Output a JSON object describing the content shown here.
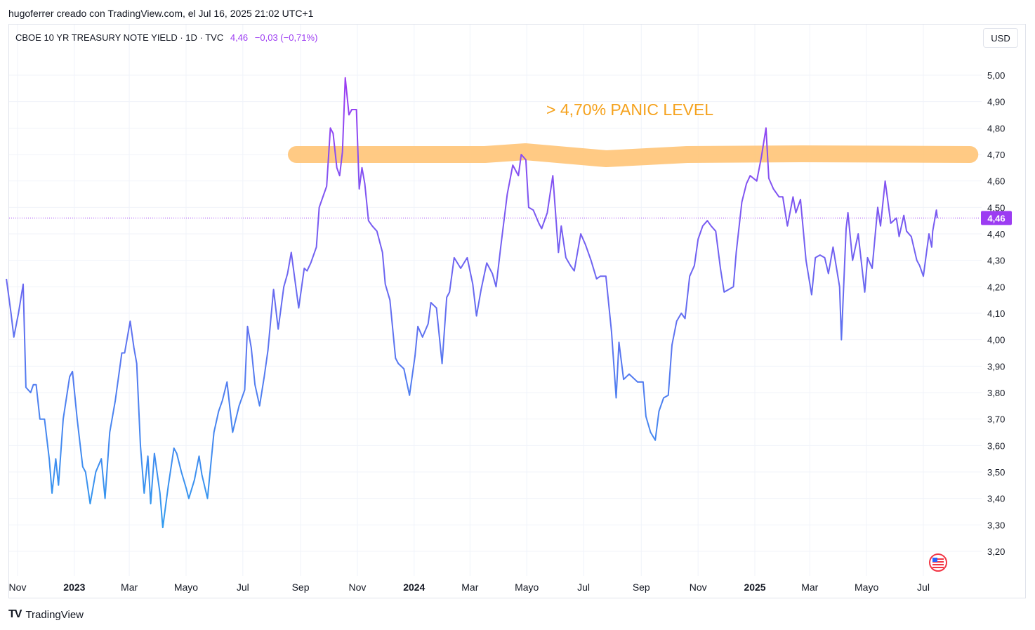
{
  "caption": "hugoferrer creado con TradingView.com, el Jul 16, 2025 21:02 UTC+1",
  "legend": {
    "symbol": "CBOE 10 YR TREASURY NOTE YIELD · 1D · TVC",
    "value": "4,46",
    "change": "−0,03 (−0,71%)"
  },
  "currency_button": "USD",
  "footer_brand": "TradingView",
  "colors": {
    "line_start": "#2f9bef",
    "line_end": "#9c3cf2",
    "zone": "#ffc57a",
    "annotation": "#f5a21d",
    "last_price_badge": "#9c3cf2"
  },
  "chart_data": {
    "type": "line",
    "title": "",
    "xlabel": "",
    "ylabel": "",
    "ylim": [
      3.1,
      5.2
    ],
    "x_ticks": [
      {
        "label": "Nov",
        "date": "2022-11-01",
        "bold": false
      },
      {
        "label": "2023",
        "date": "2023-01-01",
        "bold": true
      },
      {
        "label": "Mar",
        "date": "2023-03-01",
        "bold": false
      },
      {
        "label": "Mayo",
        "date": "2023-05-01",
        "bold": false
      },
      {
        "label": "Jul",
        "date": "2023-07-01",
        "bold": false
      },
      {
        "label": "Sep",
        "date": "2023-09-01",
        "bold": false
      },
      {
        "label": "Nov",
        "date": "2023-11-01",
        "bold": false
      },
      {
        "label": "2024",
        "date": "2024-01-01",
        "bold": true
      },
      {
        "label": "Mar",
        "date": "2024-03-01",
        "bold": false
      },
      {
        "label": "Mayo",
        "date": "2024-05-01",
        "bold": false
      },
      {
        "label": "Jul",
        "date": "2024-07-01",
        "bold": false
      },
      {
        "label": "Sep",
        "date": "2024-09-01",
        "bold": false
      },
      {
        "label": "Nov",
        "date": "2024-11-01",
        "bold": false
      },
      {
        "label": "2025",
        "date": "2025-01-01",
        "bold": true
      },
      {
        "label": "Mar",
        "date": "2025-03-01",
        "bold": false
      },
      {
        "label": "Mayo",
        "date": "2025-05-01",
        "bold": false
      },
      {
        "label": "Jul",
        "date": "2025-07-01",
        "bold": false
      }
    ],
    "y_ticks": [
      "5,00",
      "4,90",
      "4,80",
      "4,70",
      "4,60",
      "4,50",
      "4,40",
      "4,30",
      "4,20",
      "4,10",
      "4,00",
      "3,90",
      "3,80",
      "3,70",
      "3,60",
      "3,50",
      "3,40",
      "3,30",
      "3,20"
    ],
    "series": [
      {
        "points": [
          [
            "2022-10-20",
            4.23
          ],
          [
            "2022-10-25",
            4.1
          ],
          [
            "2022-10-28",
            4.01
          ],
          [
            "2022-11-02",
            4.1
          ],
          [
            "2022-11-07",
            4.21
          ],
          [
            "2022-11-10",
            3.82
          ],
          [
            "2022-11-15",
            3.8
          ],
          [
            "2022-11-18",
            3.83
          ],
          [
            "2022-11-21",
            3.83
          ],
          [
            "2022-11-25",
            3.7
          ],
          [
            "2022-11-30",
            3.7
          ],
          [
            "2022-12-05",
            3.55
          ],
          [
            "2022-12-08",
            3.42
          ],
          [
            "2022-12-12",
            3.55
          ],
          [
            "2022-12-15",
            3.45
          ],
          [
            "2022-12-20",
            3.7
          ],
          [
            "2022-12-27",
            3.86
          ],
          [
            "2022-12-30",
            3.88
          ],
          [
            "2023-01-04",
            3.7
          ],
          [
            "2023-01-10",
            3.52
          ],
          [
            "2023-01-13",
            3.5
          ],
          [
            "2023-01-18",
            3.38
          ],
          [
            "2023-01-24",
            3.5
          ],
          [
            "2023-01-30",
            3.55
          ],
          [
            "2023-02-03",
            3.4
          ],
          [
            "2023-02-08",
            3.65
          ],
          [
            "2023-02-14",
            3.77
          ],
          [
            "2023-02-21",
            3.95
          ],
          [
            "2023-02-24",
            3.95
          ],
          [
            "2023-03-02",
            4.07
          ],
          [
            "2023-03-06",
            3.97
          ],
          [
            "2023-03-09",
            3.91
          ],
          [
            "2023-03-13",
            3.6
          ],
          [
            "2023-03-17",
            3.42
          ],
          [
            "2023-03-21",
            3.56
          ],
          [
            "2023-03-24",
            3.38
          ],
          [
            "2023-03-28",
            3.57
          ],
          [
            "2023-04-03",
            3.42
          ],
          [
            "2023-04-06",
            3.29
          ],
          [
            "2023-04-12",
            3.45
          ],
          [
            "2023-04-18",
            3.59
          ],
          [
            "2023-04-21",
            3.57
          ],
          [
            "2023-04-26",
            3.5
          ],
          [
            "2023-05-01",
            3.44
          ],
          [
            "2023-05-04",
            3.4
          ],
          [
            "2023-05-10",
            3.47
          ],
          [
            "2023-05-15",
            3.56
          ],
          [
            "2023-05-18",
            3.49
          ],
          [
            "2023-05-24",
            3.4
          ],
          [
            "2023-05-31",
            3.65
          ],
          [
            "2023-06-05",
            3.73
          ],
          [
            "2023-06-09",
            3.77
          ],
          [
            "2023-06-14",
            3.84
          ],
          [
            "2023-06-20",
            3.65
          ],
          [
            "2023-06-27",
            3.75
          ],
          [
            "2023-07-03",
            3.81
          ],
          [
            "2023-07-06",
            4.05
          ],
          [
            "2023-07-10",
            3.97
          ],
          [
            "2023-07-14",
            3.83
          ],
          [
            "2023-07-19",
            3.75
          ],
          [
            "2023-07-24",
            3.86
          ],
          [
            "2023-07-28",
            3.96
          ],
          [
            "2023-08-03",
            4.19
          ],
          [
            "2023-08-08",
            4.04
          ],
          [
            "2023-08-14",
            4.2
          ],
          [
            "2023-08-18",
            4.25
          ],
          [
            "2023-08-22",
            4.33
          ],
          [
            "2023-08-25",
            4.25
          ],
          [
            "2023-08-30",
            4.12
          ],
          [
            "2023-09-05",
            4.27
          ],
          [
            "2023-09-08",
            4.26
          ],
          [
            "2023-09-12",
            4.29
          ],
          [
            "2023-09-18",
            4.35
          ],
          [
            "2023-09-21",
            4.5
          ],
          [
            "2023-09-26",
            4.55
          ],
          [
            "2023-09-29",
            4.58
          ],
          [
            "2023-10-03",
            4.8
          ],
          [
            "2023-10-06",
            4.78
          ],
          [
            "2023-10-10",
            4.65
          ],
          [
            "2023-10-13",
            4.62
          ],
          [
            "2023-10-16",
            4.71
          ],
          [
            "2023-10-19",
            4.99
          ],
          [
            "2023-10-23",
            4.85
          ],
          [
            "2023-10-26",
            4.87
          ],
          [
            "2023-10-31",
            4.87
          ],
          [
            "2023-11-03",
            4.57
          ],
          [
            "2023-11-06",
            4.65
          ],
          [
            "2023-11-09",
            4.59
          ],
          [
            "2023-11-13",
            4.45
          ],
          [
            "2023-11-17",
            4.43
          ],
          [
            "2023-11-22",
            4.41
          ],
          [
            "2023-11-28",
            4.33
          ],
          [
            "2023-12-01",
            4.21
          ],
          [
            "2023-12-06",
            4.15
          ],
          [
            "2023-12-12",
            3.93
          ],
          [
            "2023-12-15",
            3.91
          ],
          [
            "2023-12-21",
            3.89
          ],
          [
            "2023-12-27",
            3.79
          ],
          [
            "2024-01-02",
            3.94
          ],
          [
            "2024-01-05",
            4.05
          ],
          [
            "2024-01-10",
            4.01
          ],
          [
            "2024-01-16",
            4.06
          ],
          [
            "2024-01-19",
            4.14
          ],
          [
            "2024-01-25",
            4.12
          ],
          [
            "2024-01-31",
            3.91
          ],
          [
            "2024-02-05",
            4.16
          ],
          [
            "2024-02-08",
            4.18
          ],
          [
            "2024-02-13",
            4.31
          ],
          [
            "2024-02-20",
            4.27
          ],
          [
            "2024-02-27",
            4.31
          ],
          [
            "2024-03-04",
            4.21
          ],
          [
            "2024-03-08",
            4.09
          ],
          [
            "2024-03-13",
            4.19
          ],
          [
            "2024-03-19",
            4.29
          ],
          [
            "2024-03-25",
            4.25
          ],
          [
            "2024-03-29",
            4.2
          ],
          [
            "2024-04-03",
            4.35
          ],
          [
            "2024-04-10",
            4.55
          ],
          [
            "2024-04-16",
            4.66
          ],
          [
            "2024-04-22",
            4.62
          ],
          [
            "2024-04-25",
            4.7
          ],
          [
            "2024-04-30",
            4.68
          ],
          [
            "2024-05-03",
            4.5
          ],
          [
            "2024-05-08",
            4.49
          ],
          [
            "2024-05-14",
            4.44
          ],
          [
            "2024-05-17",
            4.42
          ],
          [
            "2024-05-23",
            4.48
          ],
          [
            "2024-05-29",
            4.62
          ],
          [
            "2024-06-04",
            4.33
          ],
          [
            "2024-06-07",
            4.43
          ],
          [
            "2024-06-12",
            4.31
          ],
          [
            "2024-06-17",
            4.28
          ],
          [
            "2024-06-21",
            4.26
          ],
          [
            "2024-06-28",
            4.4
          ],
          [
            "2024-07-03",
            4.36
          ],
          [
            "2024-07-09",
            4.3
          ],
          [
            "2024-07-15",
            4.23
          ],
          [
            "2024-07-19",
            4.24
          ],
          [
            "2024-07-25",
            4.24
          ],
          [
            "2024-07-31",
            4.03
          ],
          [
            "2024-08-05",
            3.78
          ],
          [
            "2024-08-08",
            3.99
          ],
          [
            "2024-08-13",
            3.85
          ],
          [
            "2024-08-19",
            3.87
          ],
          [
            "2024-08-22",
            3.86
          ],
          [
            "2024-08-28",
            3.84
          ],
          [
            "2024-09-03",
            3.84
          ],
          [
            "2024-09-06",
            3.71
          ],
          [
            "2024-09-11",
            3.65
          ],
          [
            "2024-09-16",
            3.62
          ],
          [
            "2024-09-20",
            3.73
          ],
          [
            "2024-09-25",
            3.78
          ],
          [
            "2024-09-30",
            3.79
          ],
          [
            "2024-10-04",
            3.98
          ],
          [
            "2024-10-09",
            4.07
          ],
          [
            "2024-10-14",
            4.1
          ],
          [
            "2024-10-18",
            4.08
          ],
          [
            "2024-10-23",
            4.24
          ],
          [
            "2024-10-28",
            4.28
          ],
          [
            "2024-11-01",
            4.38
          ],
          [
            "2024-11-06",
            4.43
          ],
          [
            "2024-11-11",
            4.45
          ],
          [
            "2024-11-15",
            4.43
          ],
          [
            "2024-11-20",
            4.41
          ],
          [
            "2024-11-25",
            4.27
          ],
          [
            "2024-11-29",
            4.18
          ],
          [
            "2024-12-04",
            4.19
          ],
          [
            "2024-12-09",
            4.2
          ],
          [
            "2024-12-12",
            4.33
          ],
          [
            "2024-12-18",
            4.52
          ],
          [
            "2024-12-23",
            4.59
          ],
          [
            "2024-12-27",
            4.62
          ],
          [
            "2025-01-03",
            4.6
          ],
          [
            "2025-01-08",
            4.69
          ],
          [
            "2025-01-13",
            4.8
          ],
          [
            "2025-01-16",
            4.61
          ],
          [
            "2025-01-21",
            4.57
          ],
          [
            "2025-01-27",
            4.54
          ],
          [
            "2025-01-31",
            4.54
          ],
          [
            "2025-02-05",
            4.43
          ],
          [
            "2025-02-11",
            4.54
          ],
          [
            "2025-02-14",
            4.48
          ],
          [
            "2025-02-19",
            4.53
          ],
          [
            "2025-02-25",
            4.3
          ],
          [
            "2025-03-03",
            4.17
          ],
          [
            "2025-03-07",
            4.31
          ],
          [
            "2025-03-12",
            4.32
          ],
          [
            "2025-03-17",
            4.31
          ],
          [
            "2025-03-21",
            4.25
          ],
          [
            "2025-03-26",
            4.35
          ],
          [
            "2025-04-02",
            4.2
          ],
          [
            "2025-04-04",
            4.0
          ],
          [
            "2025-04-09",
            4.42
          ],
          [
            "2025-04-11",
            4.48
          ],
          [
            "2025-04-16",
            4.3
          ],
          [
            "2025-04-22",
            4.4
          ],
          [
            "2025-04-29",
            4.18
          ],
          [
            "2025-05-02",
            4.31
          ],
          [
            "2025-05-07",
            4.27
          ],
          [
            "2025-05-13",
            4.5
          ],
          [
            "2025-05-16",
            4.43
          ],
          [
            "2025-05-21",
            4.6
          ],
          [
            "2025-05-27",
            4.44
          ],
          [
            "2025-06-02",
            4.46
          ],
          [
            "2025-06-05",
            4.39
          ],
          [
            "2025-06-10",
            4.47
          ],
          [
            "2025-06-13",
            4.41
          ],
          [
            "2025-06-18",
            4.39
          ],
          [
            "2025-06-24",
            4.3
          ],
          [
            "2025-06-27",
            4.28
          ],
          [
            "2025-07-01",
            4.24
          ],
          [
            "2025-07-07",
            4.4
          ],
          [
            "2025-07-10",
            4.35
          ],
          [
            "2025-07-11",
            4.41
          ],
          [
            "2025-07-15",
            4.49
          ],
          [
            "2025-07-16",
            4.46
          ]
        ]
      }
    ],
    "last_value_label": "4,46",
    "last_value": 4.46,
    "annotation": {
      "text": "> 4,70%  PANIC LEVEL",
      "y": 4.87
    },
    "zone": {
      "center": 4.7,
      "from": "2023-09-01",
      "to": "2025-08-20"
    },
    "grid": true,
    "legend": "top-left"
  }
}
